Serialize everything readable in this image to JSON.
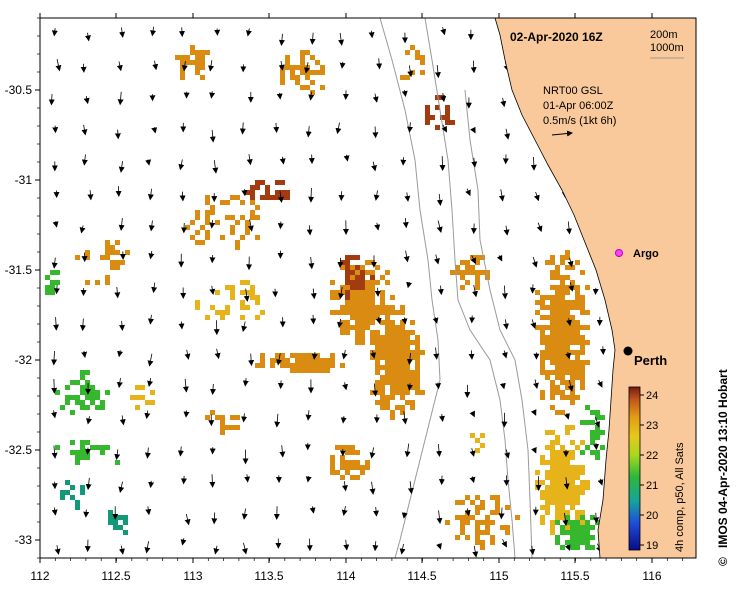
{
  "title": "02-Apr-2020 16Z",
  "depth_legend": [
    "200m",
    "1000m"
  ],
  "wind_info": [
    "NRT00 GSL",
    "01-Apr 06:00Z",
    "0.5m/s (1kt 6h)"
  ],
  "argo_label": "Argo",
  "city_label": "Perth",
  "colorbar": {
    "ticks": [
      "24",
      "23",
      "22",
      "21",
      "20",
      "19"
    ],
    "label": "4h comp, p50, All Sats"
  },
  "credit": "IMOS 04-Apr-2020 13:10 Hobart",
  "copyright_symbol": "©",
  "x_ticks": [
    "112",
    "112.5",
    "113",
    "113.5",
    "114",
    "114.5",
    "115",
    "115.5",
    "116"
  ],
  "y_ticks": [
    "-30.5",
    "-31",
    "-31.5",
    "-32",
    "-32.5",
    "-33"
  ],
  "colors": {
    "land": "#f9c99b",
    "warm": "#d98b12",
    "hot": "#a23c10",
    "mid": "#e6b31a",
    "cool": "#35b82d",
    "cold": "#129a78"
  }
}
